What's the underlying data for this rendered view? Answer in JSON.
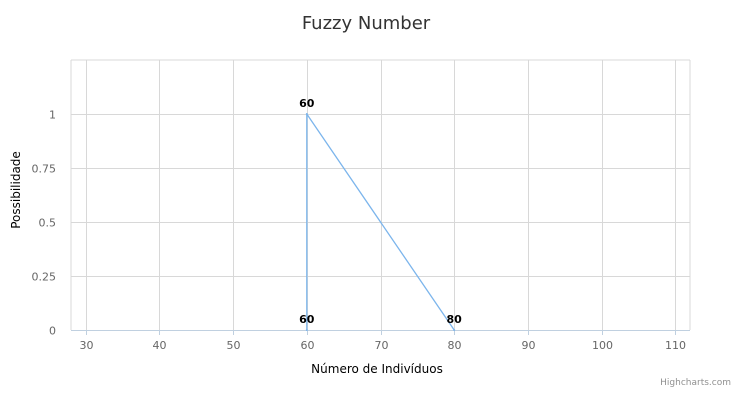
{
  "chart_data": {
    "type": "line",
    "title": "Fuzzy Number",
    "xlabel": "Número de Indivíduos",
    "ylabel": "Possibilidade",
    "xlim": [
      28,
      112
    ],
    "ylim": [
      0,
      1.25
    ],
    "x_ticks": [
      30,
      40,
      50,
      60,
      70,
      80,
      90,
      100,
      110
    ],
    "x_tick_labels": [
      "30",
      "40",
      "50",
      "60",
      "70",
      "80",
      "90",
      "100",
      "110"
    ],
    "y_ticks": [
      0,
      0.25,
      0.5,
      0.75,
      1
    ],
    "y_tick_labels": [
      "0",
      "0.25",
      "0.5",
      "0.75",
      "1"
    ],
    "grid": true,
    "legend": "none",
    "series": [
      {
        "color": "#7cb5ec",
        "points": [
          {
            "x": 60,
            "y": 0,
            "label": "60"
          },
          {
            "x": 60,
            "y": 1,
            "label": "60"
          },
          {
            "x": 80,
            "y": 0,
            "label": "80"
          }
        ]
      }
    ],
    "colors": {
      "series": "#7cb5ec",
      "grid": "#d8d8d8",
      "axis": "#c0d0e0"
    }
  },
  "credits": "Highcharts.com"
}
